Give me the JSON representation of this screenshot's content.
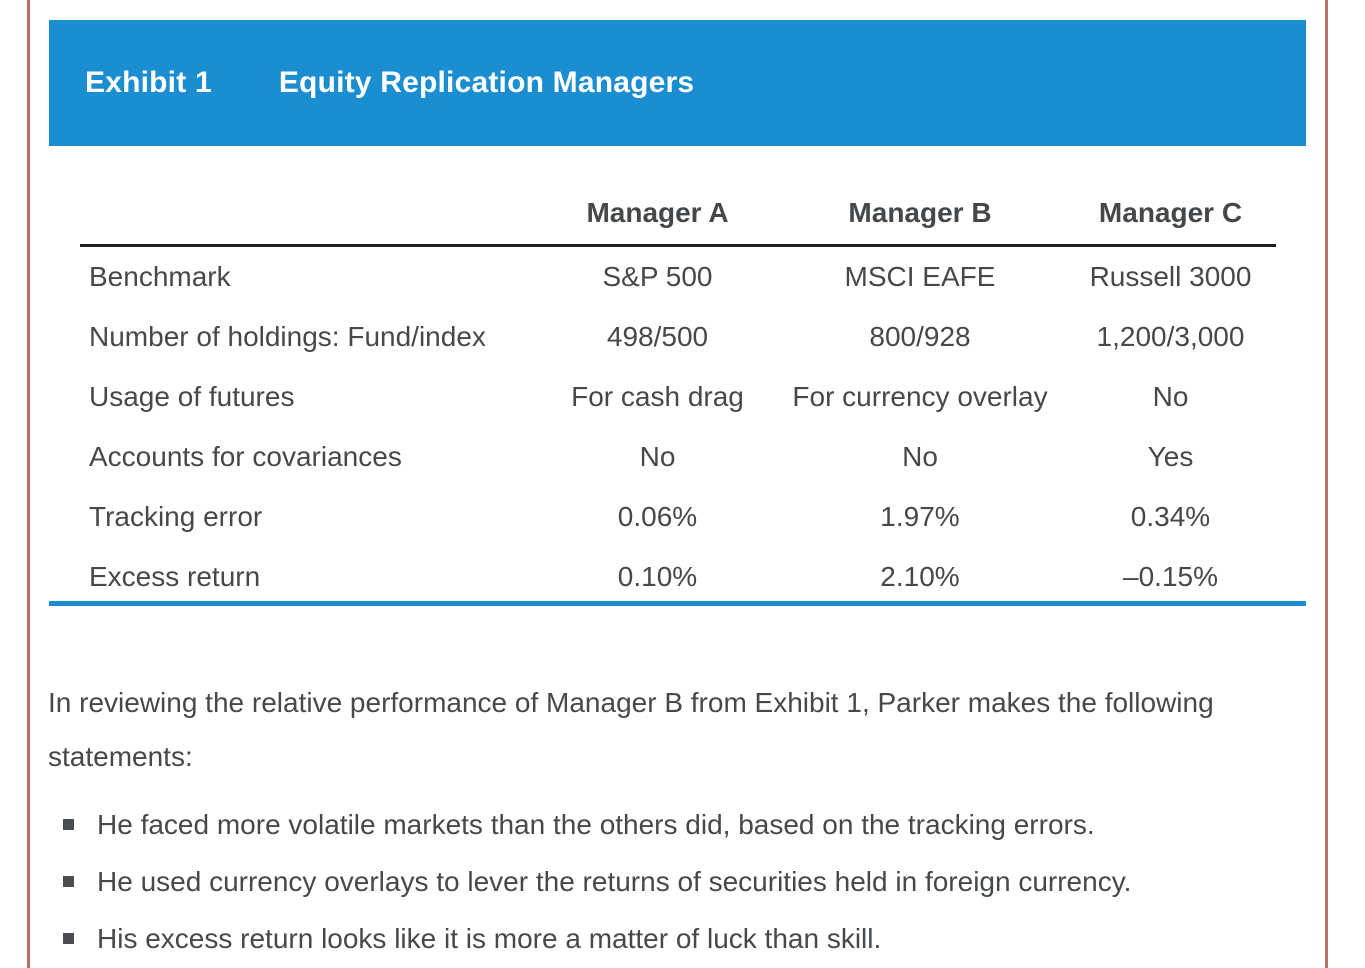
{
  "page": {
    "border_color": "#bb6f6a",
    "accent_blue": "#1b8dd1",
    "text_color": "#45494c"
  },
  "exhibit_header": {
    "label": "Exhibit 1",
    "title": "Equity Replication Managers"
  },
  "table": {
    "columns": [
      "",
      "Manager A",
      "Manager B",
      "Manager C"
    ],
    "rows": [
      {
        "label": "Benchmark",
        "a": "S&P 500",
        "b": "MSCI EAFE",
        "c": "Russell 3000"
      },
      {
        "label": "Number of holdings: Fund/index",
        "a": "498/500",
        "b": "800/928",
        "c": "1,200/3,000"
      },
      {
        "label": "Usage of futures",
        "a": "For cash drag",
        "b": "For currency overlay",
        "c": "No"
      },
      {
        "label": "Accounts for covariances",
        "a": "No",
        "b": "No",
        "c": "Yes"
      },
      {
        "label": "Tracking error",
        "a": "0.06%",
        "b": "1.97%",
        "c": "0.34%"
      },
      {
        "label": "Excess return",
        "a": "0.10%",
        "b": "2.10%",
        "c": "–0.15%"
      }
    ]
  },
  "paragraph": "In reviewing the relative performance of Manager B from Exhibit 1, Parker makes the following statements:",
  "bullets": [
    "He faced more volatile markets than the others did, based on the tracking errors.",
    "He used currency overlays to lever the returns of securities held in foreign currency.",
    "His excess return looks like it is more a matter of luck than skill."
  ]
}
